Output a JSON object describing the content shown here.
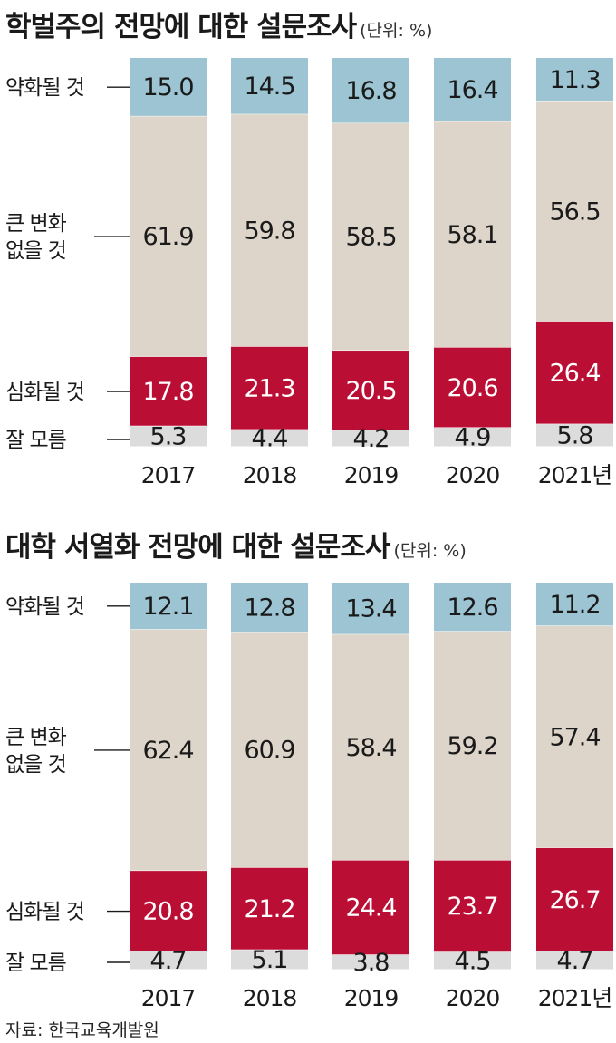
{
  "charts": [
    {
      "title": "학벌주의 전망에 대한 설문조사",
      "unit": "(단위: %)"
    },
    {
      "title": "대학 서열화 전망에 대한 설문조사",
      "unit": "(단위: %)"
    }
  ],
  "source": "자료: 한국교육개발원",
  "colors": {
    "weaken": "#9cc4d2",
    "no_change": "#ddd5c9",
    "worsen": "#bb0e34",
    "unknown": "#dcdcdc"
  },
  "chart_data": [
    {
      "type": "bar",
      "stacked": true,
      "orientation": "vertical",
      "title": "학벌주의 전망에 대한 설문조사",
      "unit": "(단위: %)",
      "categories": [
        "2017",
        "2018",
        "2019",
        "2020",
        "2021년"
      ],
      "series": [
        {
          "name": "약화될 것",
          "color": "#9cc4d2",
          "values": [
            15.0,
            14.5,
            16.8,
            16.4,
            11.3
          ],
          "labels": [
            "15.0",
            "14.5",
            "16.8",
            "16.4",
            "11.3"
          ]
        },
        {
          "name": [
            "큰 변화",
            "없을 것"
          ],
          "color": "#ddd5c9",
          "values": [
            61.9,
            59.8,
            58.5,
            58.1,
            56.5
          ],
          "labels": [
            "61.9",
            "59.8",
            "58.5",
            "58.1",
            "56.5"
          ]
        },
        {
          "name": "심화될 것",
          "color": "#bb0e34",
          "values": [
            17.8,
            21.3,
            20.5,
            20.6,
            26.4
          ],
          "labels": [
            "17.8",
            "21.3",
            "20.5",
            "20.6",
            "26.4"
          ]
        },
        {
          "name": "잘 모름",
          "color": "#dcdcdc",
          "values": [
            5.3,
            4.4,
            4.2,
            4.9,
            5.8
          ],
          "labels": [
            "5.3",
            "4.4",
            "4.2",
            "4.9",
            "5.8"
          ]
        }
      ]
    },
    {
      "type": "bar",
      "stacked": true,
      "orientation": "vertical",
      "title": "대학 서열화 전망에 대한 설문조사",
      "unit": "(단위: %)",
      "categories": [
        "2017",
        "2018",
        "2019",
        "2020",
        "2021년"
      ],
      "series": [
        {
          "name": "약화될 것",
          "color": "#9cc4d2",
          "values": [
            12.1,
            12.8,
            13.4,
            12.6,
            11.2
          ],
          "labels": [
            "12.1",
            "12.8",
            "13.4",
            "12.6",
            "11.2"
          ]
        },
        {
          "name": [
            "큰 변화",
            "없을 것"
          ],
          "color": "#ddd5c9",
          "values": [
            62.4,
            60.9,
            58.4,
            59.2,
            57.4
          ],
          "labels": [
            "62.4",
            "60.9",
            "58.4",
            "59.2",
            "57.4"
          ]
        },
        {
          "name": "심화될 것",
          "color": "#bb0e34",
          "values": [
            20.8,
            21.2,
            24.4,
            23.7,
            26.7
          ],
          "labels": [
            "20.8",
            "21.2",
            "24.4",
            "23.7",
            "26.7"
          ]
        },
        {
          "name": "잘 모름",
          "color": "#dcdcdc",
          "values": [
            4.7,
            5.1,
            3.8,
            4.5,
            4.7
          ],
          "labels": [
            "4.7",
            "5.1",
            "3.8",
            "4.5",
            "4.7"
          ]
        }
      ]
    }
  ]
}
